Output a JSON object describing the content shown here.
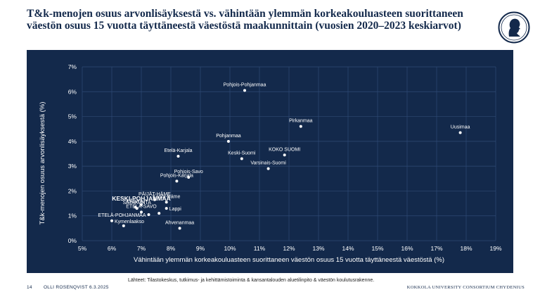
{
  "title": "T&k-menojen osuus arvonlisäyksestä vs. vähintään ylemmän korkeakouluasteen suorittaneen väestön osuus 15 vuotta täyttäneestä väestöstä maakunnittain (vuosien 2020–2023 keskiarvot)",
  "logo_icon": "university-seal-portrait-icon",
  "source": "Lähteet: Tilastokeskus, tutkimus- ja kehittämistoiminta & kansantalouden aluetilinpito & väestön koulutusrakenne.",
  "footer": {
    "page_number": "14",
    "author_date": "OLLI ROSENQVIST 6.3.2025",
    "organization": "KOKKOLA UNIVERSITY CONSORTIUM CHYDENIUS"
  },
  "colors": {
    "panel": "#13294b",
    "text": "#ffffff",
    "grid": "#2c4670",
    "title": "#13294b"
  },
  "chart_data": {
    "type": "scatter",
    "xlabel": "Vähintään ylemmän korkeakouluasteen suorittaneen väestön osuus 15 vuotta täyttäneestä väestöstä (%)",
    "ylabel": "T&k-menojen osuus arvonlisäyksestä (%)",
    "xlim": [
      5,
      19
    ],
    "ylim": [
      0,
      7
    ],
    "x_ticks": [
      "5%",
      "6%",
      "7%",
      "8%",
      "9%",
      "10%",
      "11%",
      "12%",
      "13%",
      "14%",
      "15%",
      "16%",
      "17%",
      "18%",
      "19%"
    ],
    "y_ticks": [
      "0%",
      "1%",
      "2%",
      "3%",
      "4%",
      "5%",
      "6%",
      "7%"
    ],
    "grid": true,
    "points": [
      {
        "label": "Pohjois-Pohjanmaa",
        "x": 10.5,
        "y": 6.05,
        "pos": "above"
      },
      {
        "label": "Pirkanmaa",
        "x": 12.4,
        "y": 4.6,
        "pos": "above"
      },
      {
        "label": "Uusimaa",
        "x": 17.8,
        "y": 4.35,
        "pos": "above"
      },
      {
        "label": "Pohjanmaa",
        "x": 9.95,
        "y": 4.0,
        "pos": "above"
      },
      {
        "label": "KOKO SUOMI",
        "x": 11.85,
        "y": 3.45,
        "pos": "above"
      },
      {
        "label": "Keski-Suomi",
        "x": 10.4,
        "y": 3.3,
        "pos": "above"
      },
      {
        "label": "Etelä-Karjala",
        "x": 8.25,
        "y": 3.4,
        "pos": "above"
      },
      {
        "label": "Varsinais-Suomi",
        "x": 11.3,
        "y": 2.9,
        "pos": "above"
      },
      {
        "label": "Pohjois-Savo",
        "x": 8.6,
        "y": 2.55,
        "pos": "above"
      },
      {
        "label": "Pohjois-Karjala",
        "x": 8.2,
        "y": 2.4,
        "pos": "above"
      },
      {
        "label": "PÄIJÄT-HÄME",
        "x": 7.45,
        "y": 1.65,
        "pos": "above"
      },
      {
        "label": "Kanta-Häme",
        "x": 7.85,
        "y": 1.55,
        "pos": "above"
      },
      {
        "label": "KESKI-POHJANMAA",
        "x": 7.0,
        "y": 1.45,
        "pos": "above",
        "bold": true
      },
      {
        "label": "KAINUU",
        "x": 6.8,
        "y": 1.35,
        "pos": "above"
      },
      {
        "label": "SATAKUNTA",
        "x": 6.85,
        "y": 1.3,
        "pos": "above"
      },
      {
        "label": "Lappi",
        "x": 7.85,
        "y": 1.3,
        "pos": "right"
      },
      {
        "label": "ETELÄ-SAVO",
        "x": 7.0,
        "y": 1.15,
        "pos": "above"
      },
      {
        "label": "ETELÄ-POHJANMAA",
        "x": 7.25,
        "y": 1.05,
        "pos": "left"
      },
      {
        "label": "Kymenlaakso",
        "x": 6.0,
        "y": 0.8,
        "pos": "right"
      },
      {
        "label": "Ahvenanmaa",
        "x": 8.3,
        "y": 0.5,
        "pos": "above"
      },
      {
        "label": "",
        "x": 6.4,
        "y": 0.6,
        "pos": "none"
      },
      {
        "label": "",
        "x": 7.6,
        "y": 1.1,
        "pos": "none"
      }
    ]
  }
}
